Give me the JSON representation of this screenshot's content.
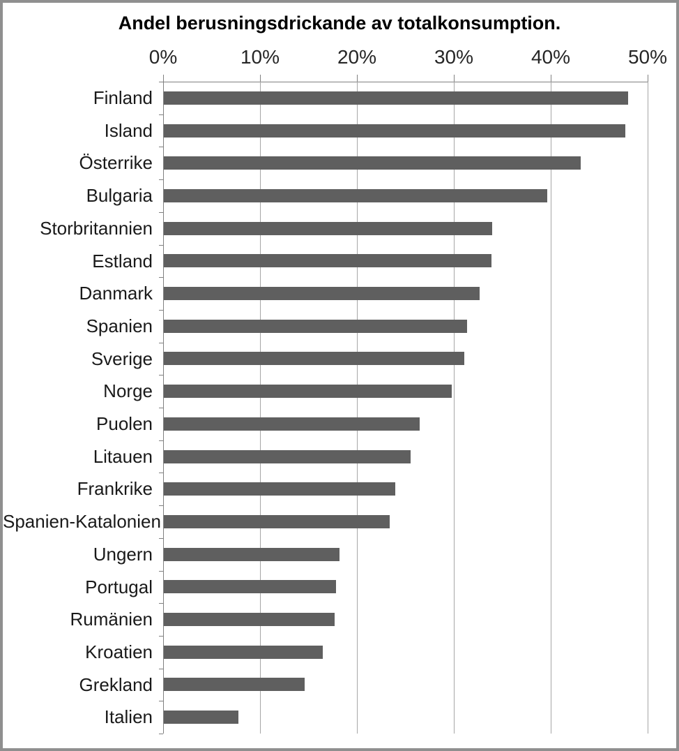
{
  "title": "Andel berusningsdrickande av totalkonsumption.",
  "colors": {
    "bar": "#5f5f5f",
    "gridline": "#a6a6a6",
    "axis_line": "#808080",
    "outer_border": "#8f8f8f",
    "title_text": "#000000",
    "tick_text": "#262626",
    "category_text": "#1a1a1a"
  },
  "chart_data": {
    "type": "bar",
    "orientation": "horizontal",
    "title": "Andel berusningsdrickande av totalkonsumption.",
    "categories": [
      "Finland",
      "Island",
      "Österrike",
      "Bulgaria",
      "Storbritannien",
      "Estland",
      "Danmark",
      "Spanien",
      "Sverige",
      "Norge",
      "Puolen",
      "Litauen",
      "Frankrike",
      "Spanien-Katalonien",
      "Ungern",
      "Portugal",
      "Rumänien",
      "Kroatien",
      "Grekland",
      "Italien"
    ],
    "values": [
      47.9,
      47.6,
      43.0,
      39.6,
      33.9,
      33.8,
      32.6,
      31.3,
      31.0,
      29.7,
      26.4,
      25.5,
      23.9,
      23.3,
      18.1,
      17.8,
      17.6,
      16.4,
      14.5,
      7.7
    ],
    "value_unit": "%",
    "x_axis": {
      "position": "top",
      "min": 0,
      "max": 50,
      "tick_step": 10,
      "tick_labels": [
        "0%",
        "10%",
        "20%",
        "30%",
        "40%",
        "50%"
      ]
    },
    "grid": true,
    "legend": false,
    "data_labels": false
  }
}
